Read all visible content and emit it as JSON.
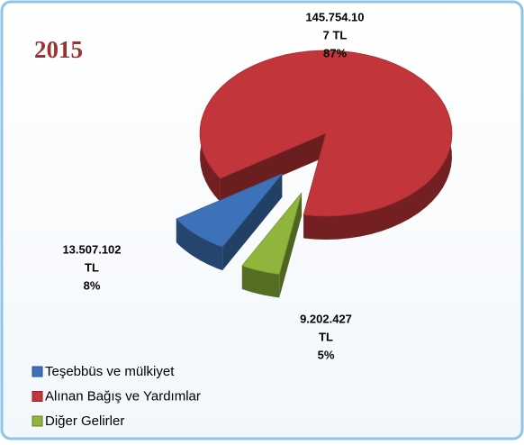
{
  "chart_data": {
    "type": "pie",
    "title": "2015",
    "categories": [
      "Teşebbüs ve mülkiyet",
      "Alınan Bağış ve Yardımlar",
      "Diğer Gelirler"
    ],
    "colors": [
      "#3d72b8",
      "#c2363b",
      "#8fb53c"
    ],
    "values": [
      8,
      87,
      5
    ],
    "value_labels": [
      "8%",
      "87%",
      "5%"
    ],
    "amounts": [
      13507102,
      145754107,
      9202427
    ],
    "amount_labels": [
      [
        "13.507.102",
        "TL"
      ],
      [
        "145.754.10",
        "7 TL"
      ],
      [
        "9.202.427",
        "TL"
      ]
    ],
    "legend": "bottom-left"
  }
}
